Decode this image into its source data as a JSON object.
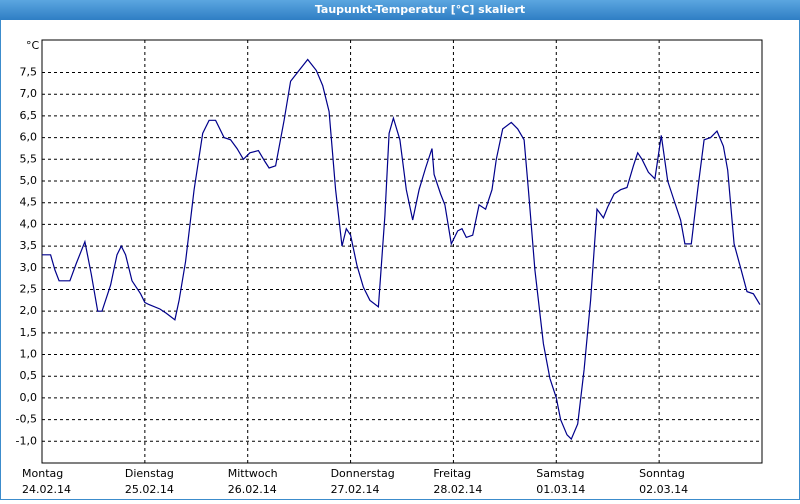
{
  "chart_data": {
    "type": "line",
    "title": "Taupunkt-Temperatur [°C] skaliert",
    "y_unit": "°C",
    "xlim": [
      0,
      168
    ],
    "ylim": [
      -1.5,
      8.25
    ],
    "xticks": [
      {
        "value": 0,
        "label": "Montag",
        "date": "24.02.14"
      },
      {
        "value": 24,
        "label": "Dienstag",
        "date": "25.02.14"
      },
      {
        "value": 48,
        "label": "Mittwoch",
        "date": "26.02.14"
      },
      {
        "value": 72,
        "label": "Donnerstag",
        "date": "27.02.14"
      },
      {
        "value": 96,
        "label": "Freitag",
        "date": "28.02.14"
      },
      {
        "value": 120,
        "label": "Samstag",
        "date": "01.03.14"
      },
      {
        "value": 144,
        "label": "Sonntag",
        "date": "02.03.14"
      }
    ],
    "yticks": [
      {
        "value": -1,
        "label": "-1,0"
      },
      {
        "value": -0.5,
        "label": "-0,5"
      },
      {
        "value": 0,
        "label": "0,0"
      },
      {
        "value": 0.5,
        "label": "0,5"
      },
      {
        "value": 1,
        "label": "1,0"
      },
      {
        "value": 1.5,
        "label": "1,5"
      },
      {
        "value": 2,
        "label": "2,0"
      },
      {
        "value": 2.5,
        "label": "2,5"
      },
      {
        "value": 3,
        "label": "3,0"
      },
      {
        "value": 3.5,
        "label": "3,5"
      },
      {
        "value": 4,
        "label": "4,0"
      },
      {
        "value": 4.5,
        "label": "4,5"
      },
      {
        "value": 5,
        "label": "5,0"
      },
      {
        "value": 5.5,
        "label": "5,5"
      },
      {
        "value": 6,
        "label": "6,0"
      },
      {
        "value": 6.5,
        "label": "6,5"
      },
      {
        "value": 7,
        "label": "7,0"
      },
      {
        "value": 7.5,
        "label": "7,5"
      }
    ],
    "grid": true,
    "color": "#00008b",
    "x": [
      0,
      2,
      3,
      4,
      6.5,
      8,
      10,
      11.5,
      13,
      14,
      16,
      17.5,
      18.5,
      19.5,
      21,
      23,
      24,
      25,
      27.5,
      29,
      31,
      32,
      33.5,
      35.5,
      37.5,
      39,
      40.5,
      42.5,
      44,
      45.5,
      47,
      48.5,
      50.5,
      52,
      53,
      54.5,
      56.5,
      58,
      60,
      62,
      64,
      65.5,
      67,
      68.5,
      70,
      71,
      72,
      73.5,
      75,
      76.5,
      78.5,
      80,
      81,
      82,
      83.5,
      85,
      86.5,
      88,
      89.5,
      91,
      91.5,
      93,
      94,
      95.5,
      97,
      98,
      99,
      100.5,
      102,
      103.5,
      105,
      106,
      107.5,
      109.5,
      111,
      112.5,
      113.5,
      115,
      117,
      118.5,
      120,
      121,
      122.5,
      123.5,
      125,
      126.5,
      128,
      129.5,
      131,
      132,
      133.5,
      135,
      136.5,
      138,
      139,
      140,
      141.5,
      143,
      144.5,
      146,
      147.5,
      149,
      150,
      151.5,
      153,
      154.5,
      156,
      157.5,
      159,
      160,
      161.5,
      163,
      164.5,
      166,
      167.5
    ],
    "values": [
      3.3,
      3.3,
      2.95,
      2.7,
      2.7,
      3.1,
      3.6,
      2.85,
      2.0,
      2.0,
      2.6,
      3.3,
      3.5,
      3.3,
      2.7,
      2.4,
      2.2,
      2.15,
      2.05,
      1.95,
      1.8,
      2.25,
      3.15,
      4.8,
      6.1,
      6.4,
      6.4,
      6.0,
      5.95,
      5.75,
      5.5,
      5.65,
      5.7,
      5.45,
      5.3,
      5.35,
      6.4,
      7.3,
      7.55,
      7.8,
      7.55,
      7.2,
      6.6,
      4.8,
      3.5,
      3.9,
      3.75,
      3.05,
      2.55,
      2.25,
      2.1,
      4.2,
      6.1,
      6.45,
      5.95,
      4.8,
      4.1,
      4.8,
      5.3,
      5.75,
      5.15,
      4.7,
      4.45,
      3.55,
      3.85,
      3.9,
      3.7,
      3.75,
      4.45,
      4.35,
      4.8,
      5.5,
      6.2,
      6.35,
      6.2,
      5.95,
      4.8,
      2.95,
      1.25,
      0.45,
      0.0,
      -0.5,
      -0.85,
      -0.95,
      -0.6,
      0.65,
      2.25,
      4.35,
      4.15,
      4.4,
      4.7,
      4.8,
      4.85,
      5.35,
      5.65,
      5.5,
      5.2,
      5.05,
      6.05,
      5.0,
      4.55,
      4.1,
      3.55,
      3.55,
      4.8,
      5.95,
      6.0,
      6.15,
      5.8,
      5.25,
      3.55,
      3.0,
      2.45,
      2.4,
      2.15
    ]
  }
}
